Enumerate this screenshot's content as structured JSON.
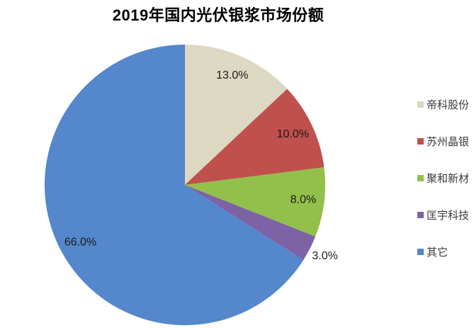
{
  "page": {
    "background": "#ffffff"
  },
  "chart_data": {
    "type": "pie",
    "title": "2019年国内光伏银浆市场份额",
    "series": [
      {
        "name": "帝科股份",
        "value": 13.0,
        "label": "13.0%",
        "color": "#DCD8C1"
      },
      {
        "name": "苏州晶银",
        "value": 10.0,
        "label": "10.0%",
        "color": "#C0504D"
      },
      {
        "name": "聚和新材",
        "value": 8.0,
        "label": "8.0%",
        "color": "#92C04A"
      },
      {
        "name": "匡宇科技",
        "value": 3.0,
        "label": "3.0%",
        "color": "#7D63A5"
      },
      {
        "name": "其它",
        "value": 66.0,
        "label": "66.0%",
        "color": "#5487CB"
      }
    ],
    "start_angle_deg": 0,
    "direction": "clockwise",
    "legend_position": "right",
    "label_color": "#1a1a1a"
  }
}
